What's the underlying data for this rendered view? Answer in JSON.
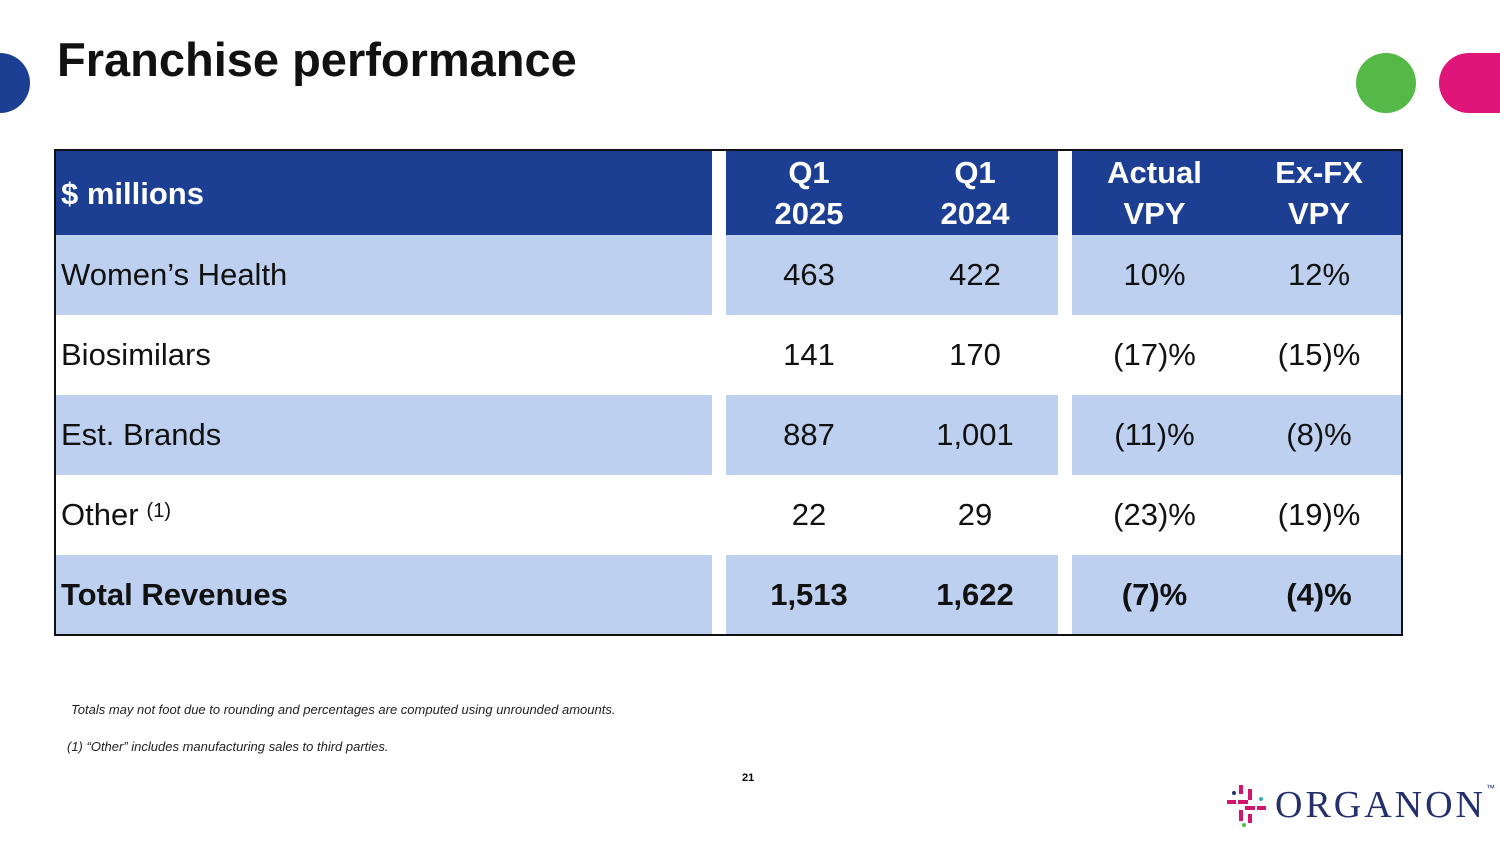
{
  "title": "Franchise performance",
  "table": {
    "header": {
      "label": "$ millions",
      "q1_2025": "Q1\n2025",
      "q1_2024": "Q1\n2024",
      "actual_vpy": "Actual\nVPY",
      "exfx_vpy": "Ex-FX\nVPY"
    },
    "rows": [
      {
        "label": "Women’s Health",
        "q1_2025": "463",
        "q1_2024": "422",
        "actual": "10%",
        "exfx": "12%"
      },
      {
        "label": "Biosimilars",
        "q1_2025": "141",
        "q1_2024": "170",
        "actual": "(17)%",
        "exfx": "(15)%"
      },
      {
        "label": "Est. Brands",
        "q1_2025": "887",
        "q1_2024": "1,001",
        "actual": "(11)%",
        "exfx": "(8)%"
      },
      {
        "label": "Other",
        "sup": "(1)",
        "q1_2025": "22",
        "q1_2024": "29",
        "actual": "(23)%",
        "exfx": "(19)%"
      },
      {
        "label": "Total Revenues",
        "q1_2025": "1,513",
        "q1_2024": "1,622",
        "actual": "(7)%",
        "exfx": "(4)%"
      }
    ]
  },
  "footnotes": {
    "rounding": "Totals may not foot due to rounding and percentages are computed using unrounded amounts.",
    "other": "(1) “Other” includes manufacturing sales to third parties."
  },
  "page_number": "21",
  "logo": {
    "text": "ORGANON",
    "tm": "™"
  },
  "colors": {
    "header": "#1c3f94",
    "shaded_row": "#bdd0f0",
    "green": "#55b947",
    "pink": "#e0157a"
  }
}
